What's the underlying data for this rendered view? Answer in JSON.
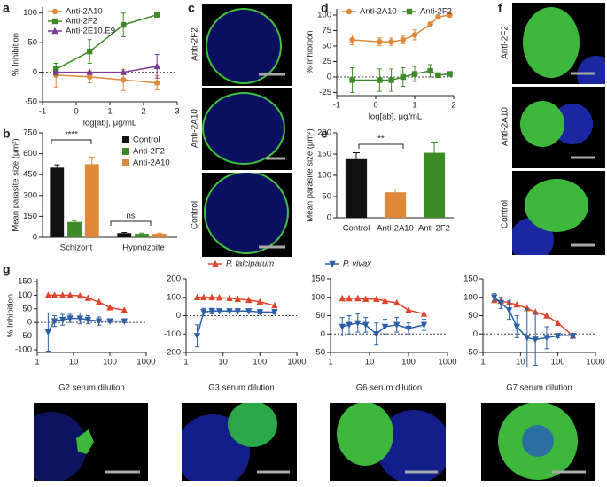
{
  "panel_labels": [
    "a",
    "b",
    "c",
    "d",
    "e",
    "f",
    "g"
  ],
  "images": {
    "c": {
      "labels": [
        "Anti-2F2",
        "Anti-2A10",
        "Control"
      ]
    },
    "f": {
      "labels": [
        "Anti-2F2",
        "Anti-2A10",
        "Control"
      ]
    }
  },
  "chart_data": [
    {
      "type": "line",
      "x": [
        -0.6,
        0.4,
        1.4,
        2.4
      ],
      "xlim": [
        -1,
        3
      ],
      "xticks": [
        -1,
        0,
        1,
        2,
        3
      ],
      "ylim": [
        -50,
        110
      ],
      "yticks": [
        -50,
        0,
        50,
        100
      ],
      "xlabel": "log[ab], μg/mL",
      "ylabel": "% Inhibition",
      "legend": "upper left",
      "zero_line": true,
      "series": [
        {
          "name": "Anti-2A10",
          "color": "#e0883a",
          "marker": "circle",
          "values": [
            -5,
            -8,
            -13,
            -18
          ],
          "errors": [
            20,
            10,
            18,
            12
          ]
        },
        {
          "name": "Anti-2F2",
          "color": "#3d8b27",
          "marker": "square",
          "values": [
            5,
            35,
            80,
            97
          ],
          "errors": [
            10,
            20,
            20,
            0
          ]
        },
        {
          "name": "Anti-2E10.E9",
          "color": "#7a3a96",
          "marker": "triangle-up",
          "values": [
            0,
            0,
            0,
            10
          ],
          "errors": [
            0,
            0,
            0,
            20
          ]
        }
      ]
    },
    {
      "type": "grouped-bar",
      "categories": [
        "Schizont",
        "Hypnozoite"
      ],
      "ylim": [
        0,
        750
      ],
      "yticks": [
        0,
        150,
        300,
        450,
        600,
        750
      ],
      "ylabel": "Mean parasite size (μm²)",
      "legend": "upper right",
      "annotations": [
        "****",
        "ns"
      ],
      "series": [
        {
          "name": "Control",
          "color": "#111111",
          "values": [
            500,
            30
          ],
          "errors": [
            20,
            5
          ]
        },
        {
          "name": "Anti-2F2",
          "color": "#3d8b27",
          "values": [
            110,
            25
          ],
          "errors": [
            10,
            5
          ]
        },
        {
          "name": "Anti-2A10",
          "color": "#e0883a",
          "values": [
            525,
            25
          ],
          "errors": [
            50,
            5
          ]
        }
      ]
    },
    {
      "type": "line",
      "x": [
        -0.6,
        0.1,
        0.4,
        0.7,
        1.0,
        1.4,
        1.6,
        1.9
      ],
      "xlim": [
        -1,
        2
      ],
      "xticks": [
        -1,
        0,
        1,
        2
      ],
      "ylim": [
        -30,
        110
      ],
      "yticks": [
        -25,
        0,
        25,
        50,
        75,
        100
      ],
      "xlabel": "log[ab], μg/mL",
      "ylabel": "% Inhibition",
      "legend": "top",
      "zero_line": true,
      "series": [
        {
          "name": "Anti-2A10",
          "color": "#e0883a",
          "marker": "circle",
          "values": [
            60,
            57,
            57,
            60,
            68,
            85,
            97,
            100
          ],
          "errors": [
            8,
            6,
            6,
            6,
            8,
            4,
            3,
            0
          ]
        },
        {
          "name": "Anti-2F2",
          "color": "#3d8b27",
          "marker": "square",
          "values": [
            -5,
            -5,
            -5,
            0,
            5,
            10,
            3,
            5
          ],
          "errors": [
            20,
            18,
            18,
            15,
            12,
            10,
            0,
            0
          ]
        }
      ]
    },
    {
      "type": "bar",
      "categories": [
        "Control",
        "Anti-2A10",
        "Anti-2F2"
      ],
      "values": [
        138,
        60,
        153
      ],
      "errors": [
        15,
        8,
        25
      ],
      "colors": [
        "#111111",
        "#e0883a",
        "#3d8b27"
      ],
      "ylim": [
        0,
        200
      ],
      "yticks": [
        0,
        50,
        100,
        150,
        200
      ],
      "ylabel": "Mean parasite size (μm²)",
      "annotations": [
        "**"
      ]
    },
    {
      "type": "line",
      "xscale": "log",
      "x": [
        2,
        3,
        5,
        8,
        15,
        25,
        50,
        100,
        250
      ],
      "xlim": [
        1,
        1000
      ],
      "xticks": [
        1,
        10,
        100,
        1000
      ],
      "ylim": [
        -110,
        160
      ],
      "yticks": [
        -100,
        -50,
        0,
        50,
        100,
        150
      ],
      "xlabel": "G2 serum dilution",
      "ylabel": "% Inhibition",
      "legend": "figure-top",
      "zero_line": true,
      "series": [
        {
          "name": "P. falciparum",
          "color": "#e0452c",
          "marker": "triangle-up",
          "values": [
            100,
            100,
            100,
            100,
            98,
            90,
            75,
            55,
            45
          ]
        },
        {
          "name": "P. vivax",
          "color": "#2a5fa8",
          "marker": "triangle-down",
          "values": [
            -35,
            5,
            10,
            15,
            15,
            10,
            5,
            5,
            5
          ],
          "errors": [
            70,
            20,
            20,
            15,
            20,
            15,
            15,
            5,
            5
          ]
        }
      ]
    },
    {
      "type": "line",
      "xscale": "log",
      "x": [
        2,
        3,
        5,
        8,
        15,
        25,
        50,
        100,
        250
      ],
      "xlim": [
        1,
        1000
      ],
      "xticks": [
        1,
        10,
        100,
        1000
      ],
      "ylim": [
        -200,
        200
      ],
      "yticks": [
        -200,
        -100,
        0,
        100,
        200
      ],
      "xlabel": "G3 serum dilution",
      "zero_line": true,
      "series": [
        {
          "color": "#e0452c",
          "marker": "triangle-up",
          "values": [
            100,
            100,
            100,
            98,
            95,
            90,
            85,
            75,
            55
          ]
        },
        {
          "color": "#2a5fa8",
          "marker": "triangle-down",
          "values": [
            -110,
            20,
            25,
            25,
            25,
            25,
            25,
            20,
            20
          ],
          "errors": [
            60,
            20,
            15,
            10,
            10,
            10,
            10,
            10,
            10
          ]
        }
      ]
    },
    {
      "type": "line",
      "xscale": "log",
      "x": [
        2,
        3,
        5,
        8,
        15,
        25,
        50,
        100,
        250
      ],
      "xlim": [
        1,
        1000
      ],
      "xticks": [
        1,
        10,
        100,
        1000
      ],
      "ylim": [
        -50,
        150
      ],
      "yticks": [
        -50,
        0,
        50,
        100,
        150
      ],
      "xlabel": "G6 serum dilution",
      "zero_line": true,
      "series": [
        {
          "color": "#e0452c",
          "marker": "triangle-up",
          "values": [
            97,
            97,
            97,
            95,
            95,
            90,
            85,
            65,
            55
          ]
        },
        {
          "color": "#2a5fa8",
          "marker": "triangle-down",
          "values": [
            20,
            25,
            30,
            25,
            0,
            20,
            25,
            15,
            25
          ],
          "errors": [
            25,
            25,
            25,
            20,
            30,
            20,
            20,
            15,
            15
          ]
        }
      ]
    },
    {
      "type": "line",
      "xscale": "log",
      "x": [
        2,
        3,
        5,
        8,
        15,
        25,
        50,
        100,
        250
      ],
      "xlim": [
        1,
        1000
      ],
      "xticks": [
        1,
        10,
        100,
        1000
      ],
      "ylim": [
        -50,
        150
      ],
      "yticks": [
        -50,
        0,
        50,
        100,
        150
      ],
      "xlabel": "G7 serum dilution",
      "zero_line": true,
      "series": [
        {
          "color": "#e0452c",
          "marker": "triangle-up",
          "values": [
            92,
            90,
            85,
            80,
            70,
            60,
            50,
            30,
            -5
          ]
        },
        {
          "color": "#2a5fa8",
          "marker": "triangle-down",
          "values": [
            100,
            85,
            65,
            20,
            -10,
            -15,
            -10,
            -5,
            -5
          ],
          "errors": [
            10,
            15,
            25,
            30,
            80,
            70,
            30,
            5,
            5
          ]
        }
      ]
    }
  ]
}
